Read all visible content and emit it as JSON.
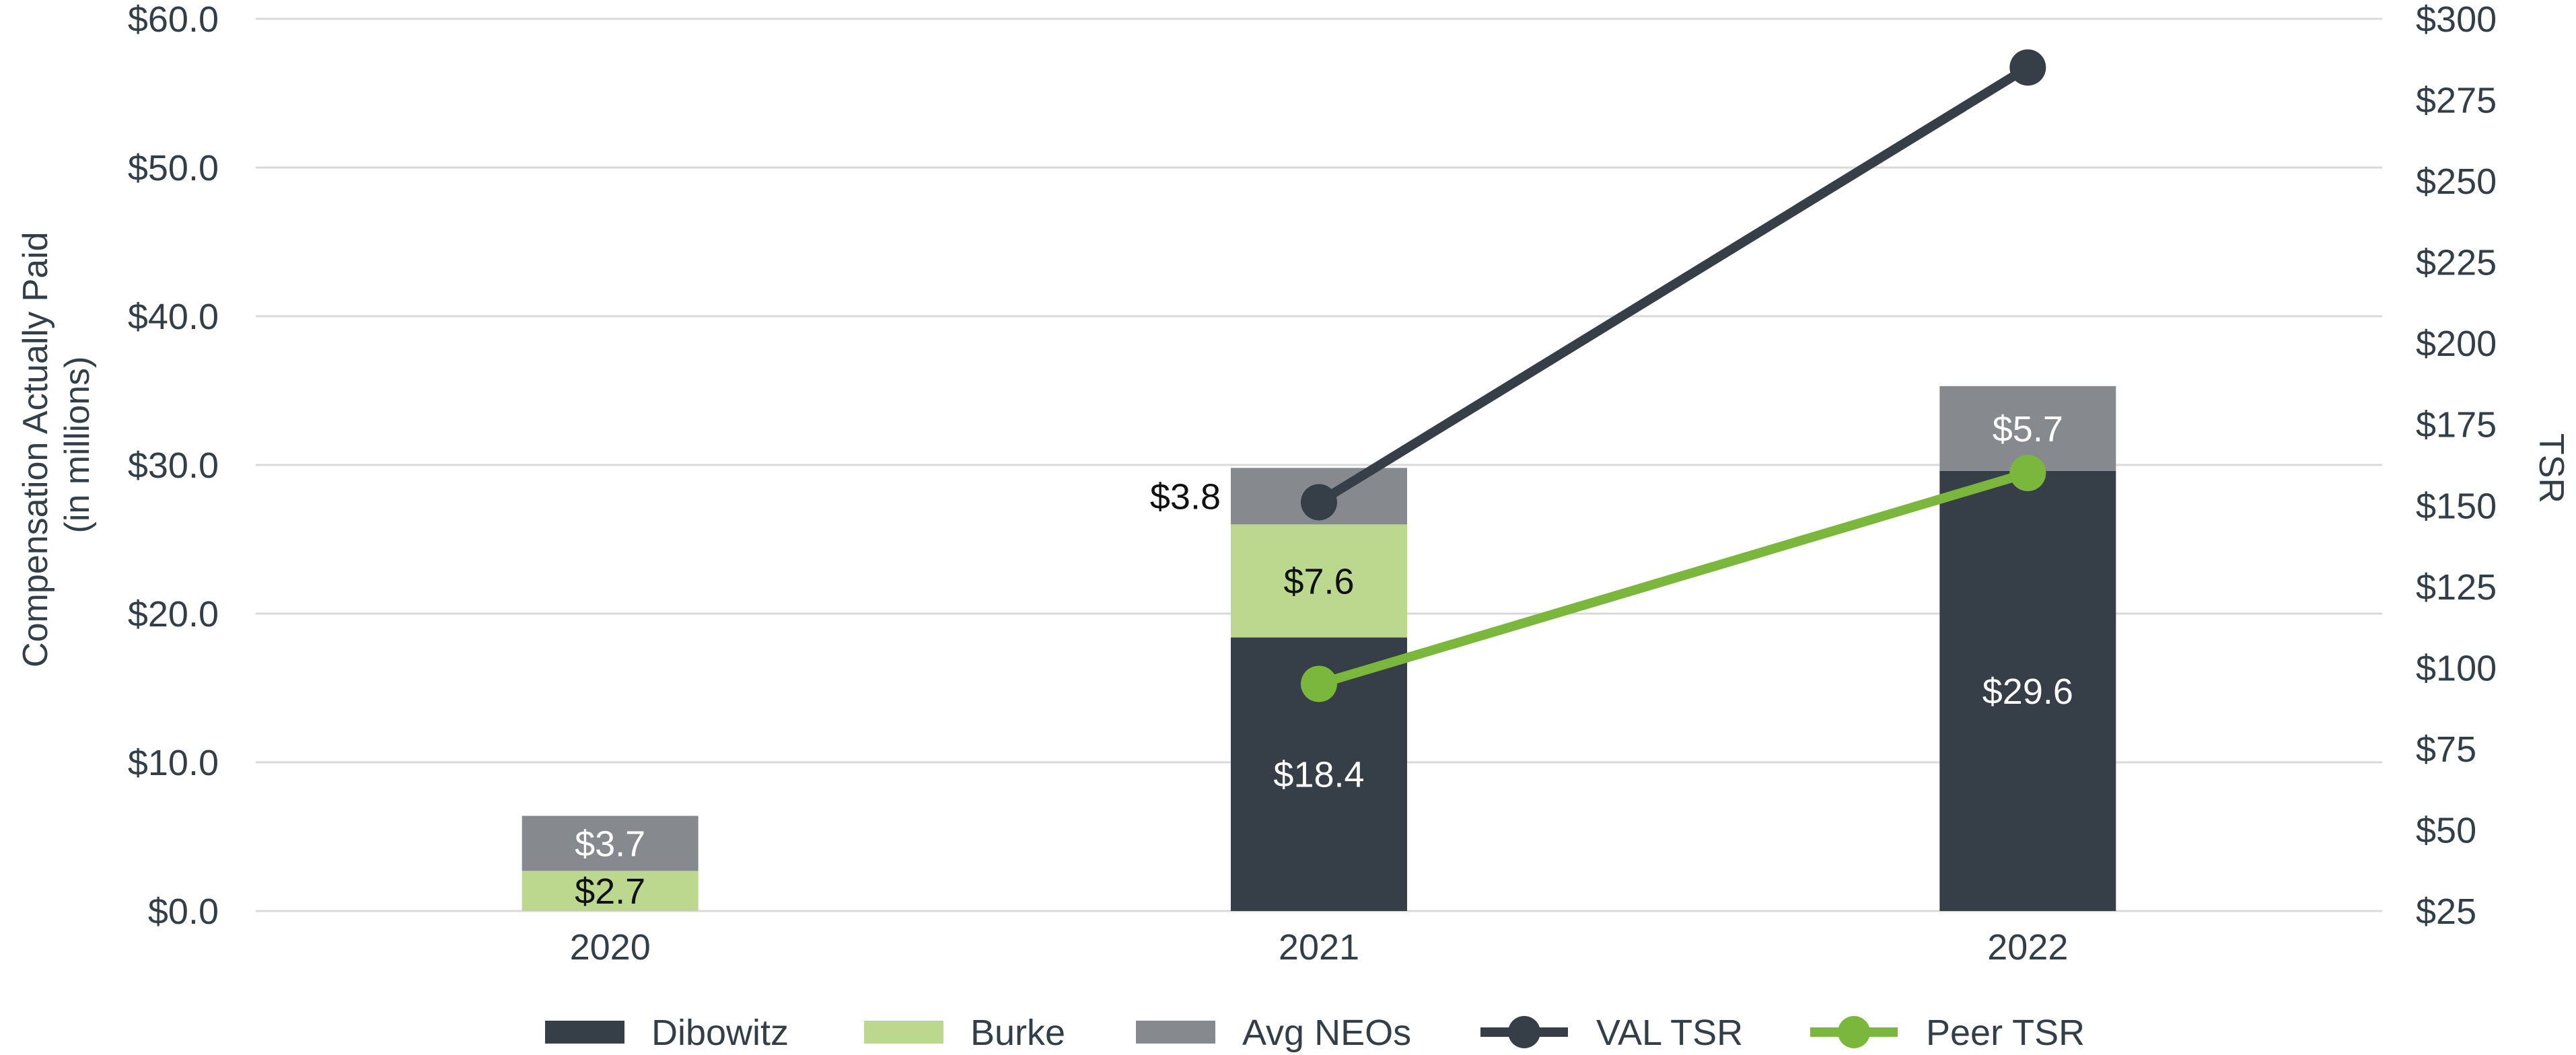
{
  "chart_data": {
    "type": "bar",
    "stacked": true,
    "categories": [
      "2020",
      "2021",
      "2022"
    ],
    "ylabel": [
      "Compensation Actually Paid",
      "(in millions)"
    ],
    "y2label": "TSR",
    "ylim": [
      0,
      60
    ],
    "y2lim": [
      25,
      300
    ],
    "y_ticks": [
      "$0.0",
      "$10.0",
      "$20.0",
      "$30.0",
      "$40.0",
      "$50.0",
      "$60.0"
    ],
    "y2_ticks": [
      "$25",
      "$50",
      "$75",
      "$100",
      "$125",
      "$150",
      "$175",
      "$200",
      "$225",
      "$250",
      "$275",
      "$300"
    ],
    "grid": true,
    "legend_position": "bottom",
    "series": [
      {
        "name": "Dibowitz",
        "type": "bar",
        "color": "#363e47",
        "values": [
          null,
          18.4,
          29.6
        ],
        "labels": [
          "",
          "$18.4",
          "$29.6"
        ],
        "label_color": "#ffffff"
      },
      {
        "name": "Burke",
        "type": "bar",
        "color": "#bcd88f",
        "values": [
          2.7,
          7.6,
          null
        ],
        "labels": [
          "$2.7",
          "$7.6",
          ""
        ],
        "label_color": "#111111"
      },
      {
        "name": "Avg NEOs",
        "type": "bar",
        "color": "#868a8f",
        "values": [
          3.7,
          3.8,
          5.7
        ],
        "labels": [
          "$3.7",
          "$3.8",
          "$5.7"
        ],
        "label_color": "#ffffff"
      },
      {
        "name": "VAL TSR",
        "type": "line",
        "axis": "y2",
        "color": "#363e47",
        "values": [
          null,
          151,
          285
        ]
      },
      {
        "name": "Peer TSR",
        "type": "line",
        "axis": "y2",
        "color": "#7ab73c",
        "values": [
          null,
          95,
          160
        ]
      }
    ]
  }
}
